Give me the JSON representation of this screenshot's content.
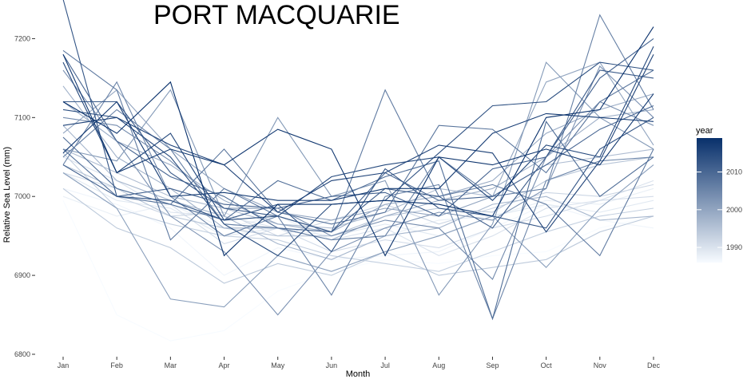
{
  "chart_data": {
    "type": "line",
    "title": "PORT MACQUARIE",
    "xlabel": "Month",
    "ylabel": "Relative Sea Level (mm)",
    "categories": [
      "Jan",
      "Feb",
      "Mar",
      "Apr",
      "May",
      "Jun",
      "Jul",
      "Aug",
      "Sep",
      "Oct",
      "Nov",
      "Dec"
    ],
    "ylim": [
      6800,
      7250
    ],
    "yticks": [
      6800,
      6900,
      7000,
      7100,
      7200
    ],
    "grid": false,
    "legend": {
      "title": "year",
      "placement": "right",
      "type": "continuous-colorbar",
      "range": [
        1986,
        2019
      ],
      "ticks": [
        1990,
        2000,
        2010
      ],
      "color_low": "#f7fbff",
      "color_high": "#08306b"
    },
    "series": [
      {
        "year": 1986,
        "values": [
          6995,
          6850,
          6817,
          6830,
          6880,
          6905,
          6920,
          6915,
          6925,
          6930,
          6960,
          6975
        ]
      },
      {
        "year": 1987,
        "values": [
          7010,
          6990,
          6960,
          6900,
          6935,
          6920,
          6925,
          6930,
          6960,
          6990,
          6970,
          6960
        ]
      },
      {
        "year": 1988,
        "values": [
          7000,
          6975,
          6990,
          6960,
          6975,
          6945,
          6950,
          6970,
          6975,
          6995,
          6990,
          7010
        ]
      },
      {
        "year": 1989,
        "values": [
          7030,
          6995,
          6985,
          6950,
          6960,
          6950,
          6965,
          6950,
          6975,
          6990,
          6980,
          6995
        ]
      },
      {
        "year": 1990,
        "values": [
          7050,
          7020,
          6980,
          6975,
          6960,
          6945,
          6960,
          6925,
          6950,
          6985,
          6995,
          7020
        ]
      },
      {
        "year": 1991,
        "values": [
          7030,
          7010,
          6990,
          6940,
          6960,
          6930,
          6945,
          6935,
          6960,
          6975,
          6995,
          7000
        ]
      },
      {
        "year": 1992,
        "values": [
          7060,
          7000,
          6975,
          6980,
          6950,
          6970,
          6990,
          6965,
          6985,
          7005,
          7000,
          7015
        ]
      },
      {
        "year": 1993,
        "values": [
          7055,
          6985,
          6965,
          6950,
          6945,
          6925,
          6915,
          6905,
          6930,
          6955,
          6975,
          6985
        ]
      },
      {
        "year": 1994,
        "values": [
          7010,
          6960,
          6935,
          6890,
          6915,
          6900,
          6930,
          6900,
          6910,
          6920,
          6955,
          6975
        ]
      },
      {
        "year": 1995,
        "values": [
          7040,
          7010,
          6975,
          6960,
          6950,
          6950,
          6975,
          6985,
          6980,
          7020,
          7040,
          7050
        ]
      },
      {
        "year": 1996,
        "values": [
          7060,
          7030,
          7000,
          6985,
          6965,
          6960,
          6980,
          7010,
          7000,
          7040,
          7050,
          7060
        ]
      },
      {
        "year": 1997,
        "values": [
          7090,
          7020,
          6995,
          6975,
          6940,
          6920,
          6950,
          6960,
          6990,
          7000,
          6970,
          6975
        ]
      },
      {
        "year": 1998,
        "values": [
          7140,
          7050,
          7010,
          6960,
          6960,
          6945,
          6975,
          6995,
          7010,
          7050,
          7100,
          7110
        ]
      },
      {
        "year": 1999,
        "values": [
          7120,
          7070,
          7040,
          6995,
          6965,
          6955,
          6990,
          7000,
          7020,
          7080,
          7110,
          7130
        ]
      },
      {
        "year": 2000,
        "values": [
          7080,
          7135,
          7060,
          7010,
          6980,
          6970,
          6985,
          6975,
          7000,
          7145,
          7170,
          7065
        ]
      },
      {
        "year": 2001,
        "values": [
          7030,
          6985,
          6870,
          6860,
          6925,
          6905,
          6930,
          6950,
          6975,
          6910,
          6985,
          7040
        ]
      },
      {
        "year": 2002,
        "values": [
          7060,
          7045,
          7135,
          6975,
          7100,
          7000,
          7020,
          6875,
          6965,
          7170,
          7100,
          7060
        ]
      },
      {
        "year": 2003,
        "values": [
          7160,
          7070,
          6975,
          6930,
          6850,
          6930,
          6960,
          6980,
          6970,
          7010,
          7165,
          7100
        ]
      },
      {
        "year": 2004,
        "values": [
          7100,
          7090,
          7045,
          6985,
          6985,
          6950,
          6970,
          6960,
          6895,
          7050,
          7120,
          7090
        ]
      },
      {
        "year": 2005,
        "values": [
          7040,
          7145,
          7000,
          6950,
          6975,
          6875,
          7000,
          7015,
          6845,
          7020,
          7045,
          7050
        ]
      },
      {
        "year": 2006,
        "values": [
          7050,
          7110,
          7060,
          6965,
          6960,
          6945,
          6950,
          7050,
          7000,
          7010,
          7230,
          7110
        ]
      },
      {
        "year": 2007,
        "values": [
          7185,
          7135,
          6945,
          7010,
          6975,
          6955,
          7135,
          7000,
          7015,
          6990,
          6925,
          7060
        ]
      },
      {
        "year": 2008,
        "values": [
          7060,
          7000,
          6990,
          7060,
          6980,
          6965,
          6980,
          7090,
          7085,
          7030,
          7120,
          7160
        ]
      },
      {
        "year": 2009,
        "values": [
          7075,
          7010,
          6990,
          6970,
          7020,
          6995,
          7025,
          7045,
          6845,
          7095,
          7000,
          7050
        ]
      },
      {
        "year": 2010,
        "values": [
          7180,
          7070,
          7025,
          7000,
          6960,
          6955,
          7030,
          6995,
          7000,
          7040,
          7085,
          7115
        ]
      },
      {
        "year": 2011,
        "values": [
          7040,
          7000,
          7010,
          6990,
          6985,
          7000,
          7005,
          6975,
          7035,
          7050,
          7150,
          7200
        ]
      },
      {
        "year": 2012,
        "values": [
          7120,
          7120,
          7030,
          6985,
          6975,
          6955,
          7010,
          7000,
          6960,
          7050,
          7160,
          7150
        ]
      },
      {
        "year": 2013,
        "values": [
          7250,
          7000,
          6995,
          6970,
          6990,
          6930,
          7035,
          6985,
          6975,
          6960,
          7060,
          7100
        ]
      },
      {
        "year": 2014,
        "values": [
          7110,
          7100,
          7050,
          6965,
          6925,
          6990,
          6995,
          7055,
          7115,
          7120,
          7170,
          7160
        ]
      },
      {
        "year": 2015,
        "values": [
          7170,
          7030,
          7080,
          6970,
          6975,
          7025,
          7040,
          7050,
          6995,
          7065,
          7050,
          7190
        ]
      },
      {
        "year": 2016,
        "values": [
          7090,
          7100,
          7065,
          7040,
          6980,
          7020,
          7030,
          7065,
          7055,
          6955,
          7045,
          7180
        ]
      },
      {
        "year": 2017,
        "values": [
          7055,
          7120,
          7000,
          7005,
          6995,
          6995,
          7010,
          7010,
          7080,
          7105,
          7100,
          7095
        ]
      },
      {
        "year": 2018,
        "values": [
          7180,
          7030,
          7060,
          7040,
          7085,
          7060,
          6925,
          7050,
          7040,
          7060,
          7040,
          7130
        ]
      },
      {
        "year": 2019,
        "values": [
          7120,
          7080,
          7145,
          6925,
          6990,
          6990,
          6995,
          6990,
          6975,
          7100,
          7110,
          7215
        ]
      }
    ]
  }
}
